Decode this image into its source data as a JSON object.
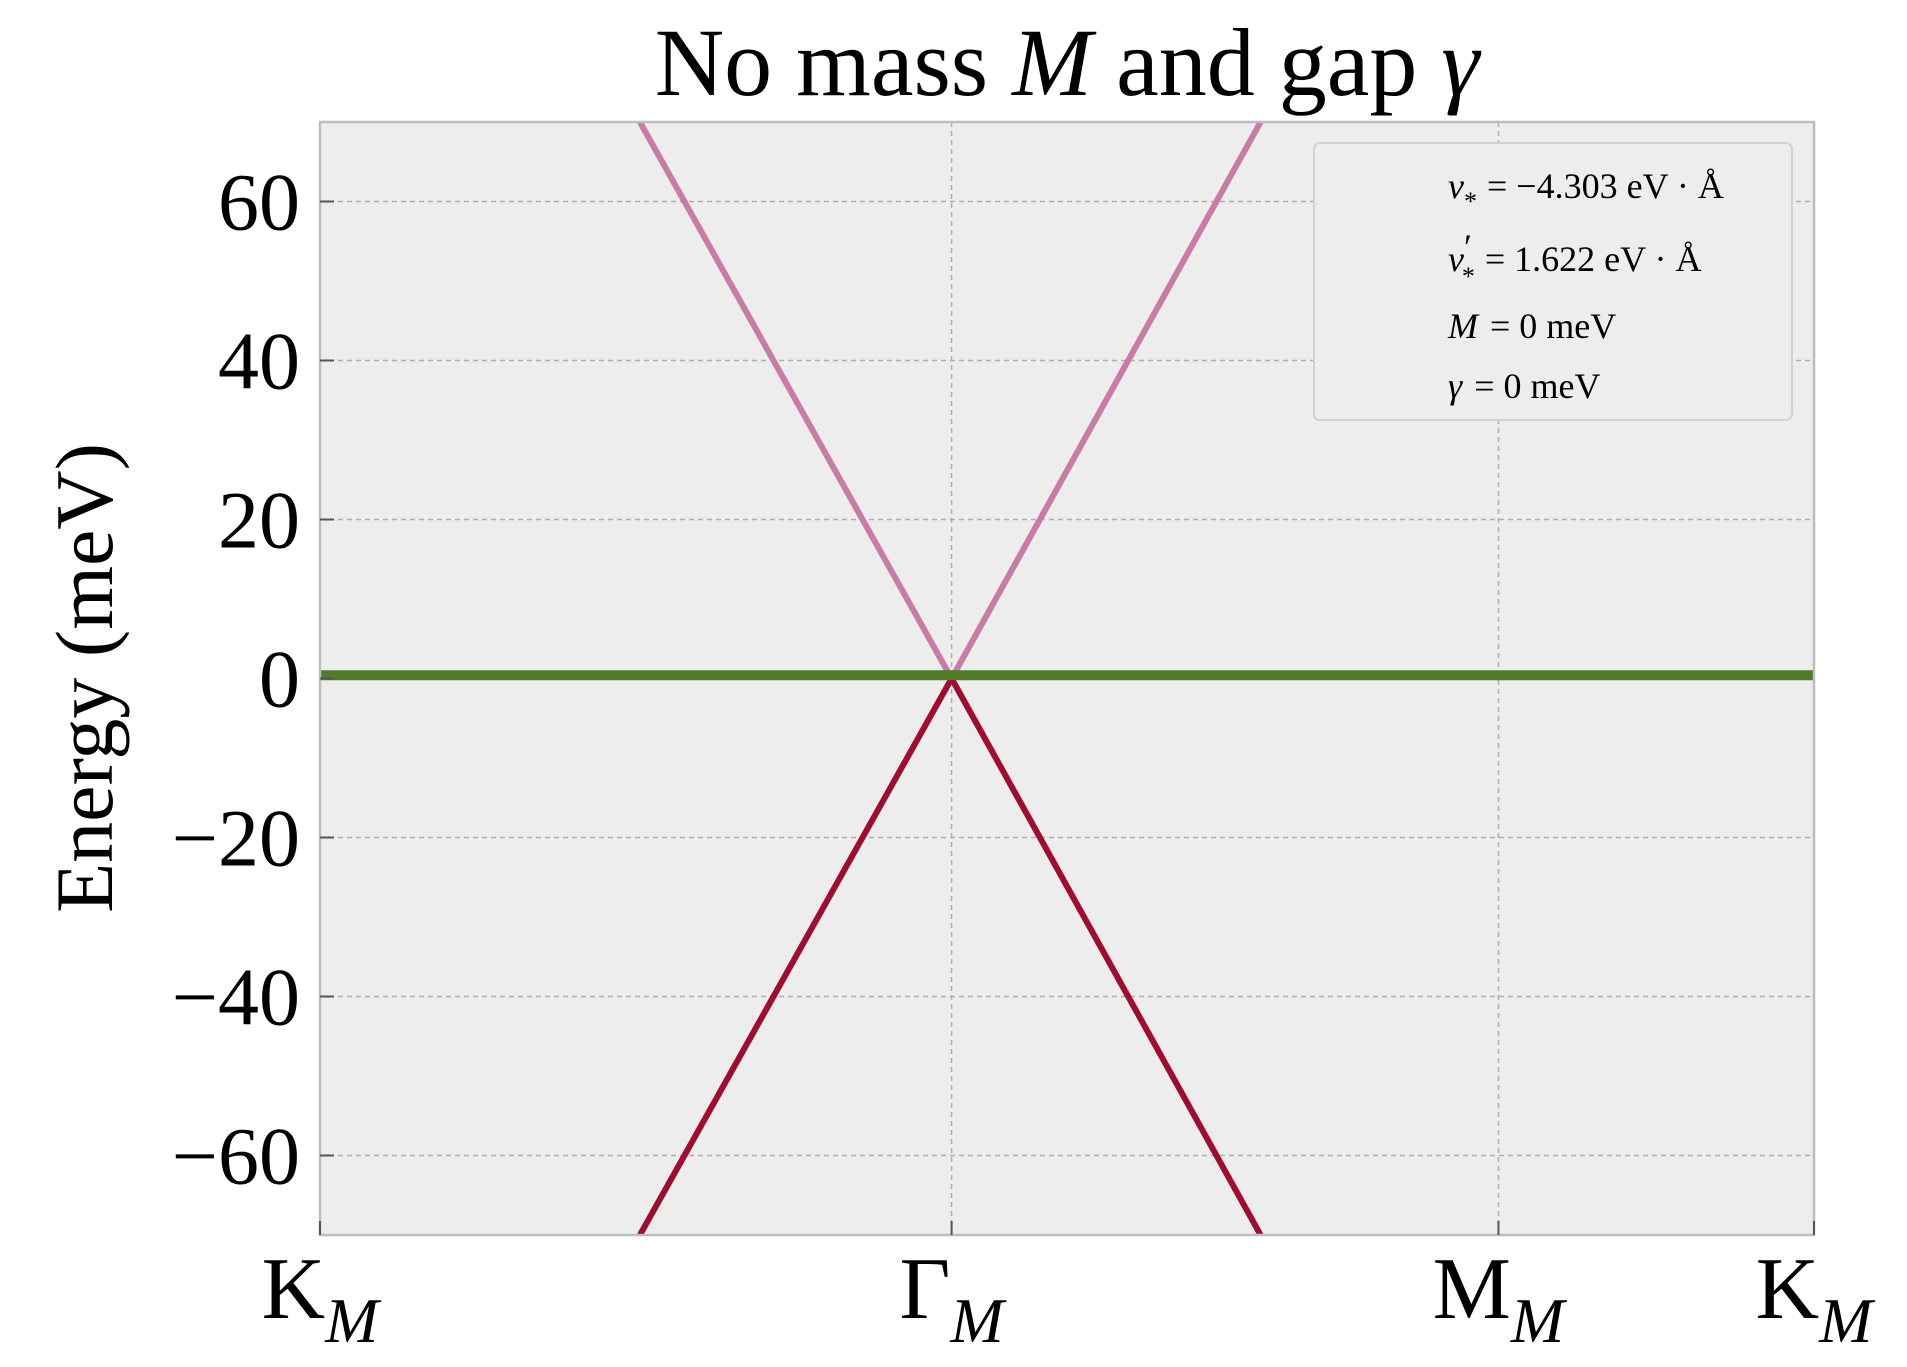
{
  "chart_data": {
    "type": "line",
    "title": {
      "prefix": "No mass ",
      "mass_symbol": "M",
      "middle": " and gap ",
      "gap_symbol": "γ"
    },
    "ylabel": "Energy (meV)",
    "xlabel": "",
    "ylim": [
      -70,
      70
    ],
    "yticks": [
      -60,
      -40,
      -20,
      0,
      20,
      40,
      60
    ],
    "xlim": [
      0,
      2.732
    ],
    "xticks": [
      {
        "x": 0,
        "base": "K",
        "sub": "M"
      },
      {
        "x": 1.155,
        "base": "Γ",
        "sub": "M"
      },
      {
        "x": 2.155,
        "base": "M",
        "sub": "M"
      },
      {
        "x": 2.732,
        "base": "K",
        "sub": "M"
      }
    ],
    "grid": true,
    "legend_position": "top-right",
    "series": [
      {
        "color": "#C87BA6",
        "x": [
          0.585,
          1.155,
          1.72
        ],
        "y": [
          70,
          0,
          70
        ]
      },
      {
        "color": "#A00B30",
        "x": [
          0.585,
          1.155,
          1.72
        ],
        "y": [
          -70,
          0,
          -70
        ]
      },
      {
        "color": "#4F7A28",
        "x": [
          0,
          2.732
        ],
        "y": [
          0.4,
          0.4
        ]
      }
    ],
    "legend_entries": [
      {
        "symbol": "v",
        "sub": "*",
        "prime": false,
        "text": "= −4.303 eV · Å"
      },
      {
        "symbol": "v",
        "sub": "*",
        "prime": true,
        "text": "= 1.622 eV · Å"
      },
      {
        "symbol": "M",
        "sub": "",
        "prime": false,
        "text": "= 0 meV"
      },
      {
        "symbol": "γ",
        "sub": "",
        "prime": false,
        "text": "= 0 meV"
      }
    ]
  }
}
